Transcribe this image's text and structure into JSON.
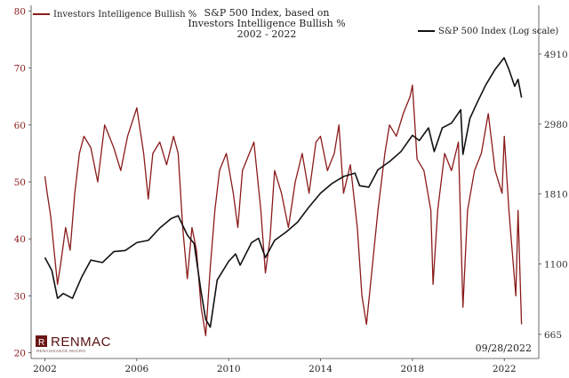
{
  "chart_data": {
    "type": "line",
    "title": [
      "S&P 500 Index, based on",
      "Investors Intelligence Bullish %",
      "2002 - 2022"
    ],
    "date_label": "09/28/2022",
    "brand": {
      "name": "RENMAC",
      "tagline": "RENAISSANCE MACRO"
    },
    "x_ticks": [
      "2002",
      "2006",
      "2010",
      "2014",
      "2018",
      "2022"
    ],
    "x_range": [
      2001.4,
      2023.5
    ],
    "y_left": {
      "ticks": [
        20,
        30,
        40,
        50,
        60,
        70,
        80
      ],
      "range": [
        19,
        81
      ]
    },
    "y_right": {
      "ticks": [
        "665",
        "1100",
        "1810",
        "2980",
        "4910"
      ],
      "tick_values": [
        665,
        1100,
        1810,
        2980,
        4910
      ],
      "range": [
        560,
        6950
      ],
      "scale": "log"
    },
    "colors": {
      "bullish": "#8b1a1a",
      "spx": "#111111",
      "axis": "#444444"
    },
    "series": [
      {
        "name": "Investors Intelligence Bullish %",
        "axis": "left",
        "x": [
          2002.0,
          2002.1,
          2002.25,
          2002.4,
          2002.55,
          2002.7,
          2002.9,
          2003.1,
          2003.3,
          2003.5,
          2003.7,
          2004.0,
          2004.3,
          2004.6,
          2005.0,
          2005.3,
          2005.6,
          2006.0,
          2006.3,
          2006.5,
          2006.7,
          2007.0,
          2007.3,
          2007.6,
          2007.8,
          2008.0,
          2008.2,
          2008.4,
          2008.6,
          2008.8,
          2009.0,
          2009.2,
          2009.4,
          2009.6,
          2009.9,
          2010.2,
          2010.4,
          2010.6,
          2010.9,
          2011.1,
          2011.4,
          2011.6,
          2011.8,
          2012.0,
          2012.3,
          2012.6,
          2012.9,
          2013.2,
          2013.5,
          2013.8,
          2014.0,
          2014.3,
          2014.6,
          2014.8,
          2015.0,
          2015.3,
          2015.6,
          2015.8,
          2016.0,
          2016.2,
          2016.5,
          2016.8,
          2017.0,
          2017.3,
          2017.6,
          2017.9,
          2018.0,
          2018.2,
          2018.5,
          2018.8,
          2018.9,
          2019.1,
          2019.4,
          2019.7,
          2020.0,
          2020.2,
          2020.4,
          2020.7,
          2021.0,
          2021.3,
          2021.6,
          2021.9,
          2022.0,
          2022.2,
          2022.4,
          2022.5,
          2022.6,
          2022.75
        ],
        "values": [
          51,
          48,
          44,
          38,
          32,
          36,
          42,
          38,
          48,
          55,
          58,
          56,
          50,
          60,
          56,
          52,
          58,
          63,
          55,
          47,
          55,
          57,
          53,
          58,
          55,
          42,
          33,
          42,
          38,
          28,
          23,
          35,
          45,
          52,
          55,
          48,
          42,
          52,
          55,
          57,
          45,
          34,
          40,
          52,
          48,
          42,
          50,
          55,
          48,
          57,
          58,
          52,
          55,
          60,
          48,
          53,
          42,
          30,
          25,
          33,
          45,
          55,
          60,
          58,
          62,
          65,
          67,
          54,
          52,
          45,
          32,
          45,
          55,
          52,
          57,
          28,
          45,
          52,
          55,
          62,
          52,
          48,
          58,
          45,
          35,
          30,
          45,
          25
        ]
      },
      {
        "name": "S&P 500 Index (Log scale)",
        "axis": "right",
        "x": [
          2002.0,
          2002.3,
          2002.55,
          2002.8,
          2003.2,
          2003.6,
          2004.0,
          2004.5,
          2005.0,
          2005.5,
          2006.0,
          2006.5,
          2007.0,
          2007.5,
          2007.8,
          2008.2,
          2008.5,
          2008.8,
          2009.0,
          2009.2,
          2009.5,
          2010.0,
          2010.3,
          2010.5,
          2011.0,
          2011.3,
          2011.6,
          2012.0,
          2012.5,
          2013.0,
          2013.5,
          2014.0,
          2014.5,
          2015.0,
          2015.5,
          2015.7,
          2016.1,
          2016.5,
          2017.0,
          2017.5,
          2018.0,
          2018.3,
          2018.7,
          2018.95,
          2019.3,
          2019.7,
          2020.1,
          2020.2,
          2020.5,
          2020.8,
          2021.2,
          2021.6,
          2021.99,
          2022.2,
          2022.45,
          2022.6,
          2022.75
        ],
        "values": [
          1150,
          1050,
          860,
          890,
          860,
          1000,
          1130,
          1110,
          1200,
          1210,
          1280,
          1300,
          1420,
          1520,
          1550,
          1350,
          1270,
          900,
          740,
          700,
          980,
          1120,
          1180,
          1090,
          1280,
          1320,
          1150,
          1300,
          1380,
          1480,
          1650,
          1820,
          1950,
          2050,
          2100,
          1920,
          1900,
          2150,
          2280,
          2450,
          2750,
          2650,
          2900,
          2450,
          2900,
          3000,
          3300,
          2400,
          3100,
          3450,
          3950,
          4400,
          4780,
          4400,
          3900,
          4100,
          3600
        ]
      }
    ],
    "legend": {
      "left": "Investors Intelligence Bullish %",
      "right": "S&P 500 Index (Log scale)"
    }
  }
}
